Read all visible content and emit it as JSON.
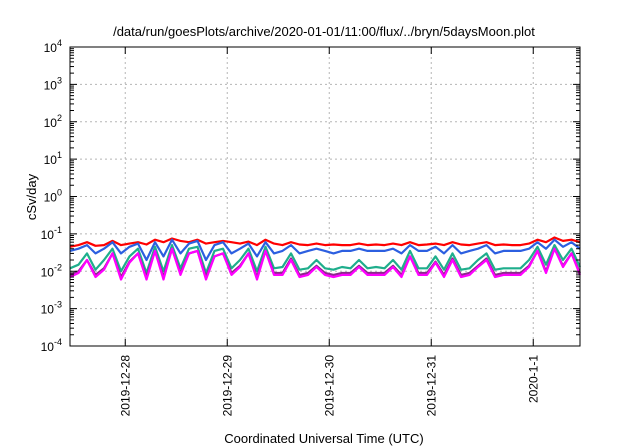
{
  "chart_data": {
    "type": "line",
    "title": "/data/run/goesPlots/archive/2020-01-01/11:00/flux/../bryn/5daysMoon.plot",
    "xlabel": "Coordinated Universal Time (UTC)",
    "ylabel": "cSv/day",
    "yscale": "log",
    "ylim": [
      0.0001,
      10000
    ],
    "xlim": [
      "2019-12-27 11:00",
      "2020-01-01 11:00"
    ],
    "grid": true,
    "y_ticks": [
      {
        "base": "10",
        "exp": "-4"
      },
      {
        "base": "10",
        "exp": "-3"
      },
      {
        "base": "10",
        "exp": "-2"
      },
      {
        "base": "10",
        "exp": "-1"
      },
      {
        "base": "10",
        "exp": "0"
      },
      {
        "base": "10",
        "exp": "1"
      },
      {
        "base": "10",
        "exp": "2"
      },
      {
        "base": "10",
        "exp": "3"
      },
      {
        "base": "10",
        "exp": "4"
      }
    ],
    "x_ticks": [
      "2019-12-28",
      "2019-12-29",
      "2019-12-30",
      "2019-12-31",
      "2020-1-1"
    ],
    "x_tick_times": [
      "2019-12-28 00:00",
      "2019-12-29 00:00",
      "2019-12-30 00:00",
      "2019-12-31 00:00",
      "2020-01-01 00:00"
    ],
    "x": [
      "2019-12-27 11:00",
      "2019-12-27 13:00",
      "2019-12-27 15:00",
      "2019-12-27 17:00",
      "2019-12-27 19:00",
      "2019-12-27 21:00",
      "2019-12-27 23:00",
      "2019-12-28 01:00",
      "2019-12-28 03:00",
      "2019-12-28 05:00",
      "2019-12-28 07:00",
      "2019-12-28 09:00",
      "2019-12-28 11:00",
      "2019-12-28 13:00",
      "2019-12-28 15:00",
      "2019-12-28 17:00",
      "2019-12-28 19:00",
      "2019-12-28 21:00",
      "2019-12-28 23:00",
      "2019-12-29 01:00",
      "2019-12-29 03:00",
      "2019-12-29 05:00",
      "2019-12-29 07:00",
      "2019-12-29 09:00",
      "2019-12-29 11:00",
      "2019-12-29 13:00",
      "2019-12-29 15:00",
      "2019-12-29 17:00",
      "2019-12-29 19:00",
      "2019-12-29 21:00",
      "2019-12-29 23:00",
      "2019-12-30 01:00",
      "2019-12-30 03:00",
      "2019-12-30 05:00",
      "2019-12-30 07:00",
      "2019-12-30 09:00",
      "2019-12-30 11:00",
      "2019-12-30 13:00",
      "2019-12-30 15:00",
      "2019-12-30 17:00",
      "2019-12-30 19:00",
      "2019-12-30 21:00",
      "2019-12-30 23:00",
      "2019-12-31 01:00",
      "2019-12-31 03:00",
      "2019-12-31 05:00",
      "2019-12-31 07:00",
      "2019-12-31 09:00",
      "2019-12-31 11:00",
      "2019-12-31 13:00",
      "2019-12-31 15:00",
      "2019-12-31 17:00",
      "2019-12-31 19:00",
      "2019-12-31 21:00",
      "2019-12-31 23:00",
      "2020-01-01 01:00",
      "2020-01-01 03:00",
      "2020-01-01 05:00",
      "2020-01-01 07:00",
      "2020-01-01 09:00",
      "2020-01-01 11:00"
    ],
    "series": [
      {
        "color": "#ff0000",
        "values": [
          0.045,
          0.05,
          0.06,
          0.048,
          0.05,
          0.065,
          0.05,
          0.055,
          0.06,
          0.052,
          0.07,
          0.06,
          0.075,
          0.065,
          0.06,
          0.07,
          0.055,
          0.06,
          0.065,
          0.06,
          0.055,
          0.062,
          0.05,
          0.07,
          0.055,
          0.05,
          0.06,
          0.052,
          0.05,
          0.055,
          0.05,
          0.052,
          0.05,
          0.05,
          0.055,
          0.05,
          0.052,
          0.05,
          0.055,
          0.05,
          0.06,
          0.05,
          0.052,
          0.055,
          0.05,
          0.06,
          0.052,
          0.05,
          0.055,
          0.06,
          0.05,
          0.052,
          0.05,
          0.05,
          0.055,
          0.07,
          0.06,
          0.08,
          0.065,
          0.07,
          0.06
        ]
      },
      {
        "color": "#2c5fe0",
        "values": [
          0.035,
          0.04,
          0.05,
          0.03,
          0.04,
          0.06,
          0.03,
          0.045,
          0.055,
          0.02,
          0.06,
          0.025,
          0.07,
          0.03,
          0.055,
          0.065,
          0.02,
          0.05,
          0.06,
          0.03,
          0.04,
          0.055,
          0.025,
          0.06,
          0.03,
          0.035,
          0.05,
          0.03,
          0.035,
          0.04,
          0.035,
          0.03,
          0.035,
          0.035,
          0.04,
          0.035,
          0.035,
          0.035,
          0.04,
          0.03,
          0.05,
          0.035,
          0.035,
          0.045,
          0.03,
          0.05,
          0.03,
          0.035,
          0.04,
          0.05,
          0.03,
          0.035,
          0.035,
          0.035,
          0.04,
          0.06,
          0.04,
          0.07,
          0.045,
          0.06,
          0.04
        ]
      },
      {
        "color": "#1fae8c",
        "values": [
          0.012,
          0.015,
          0.03,
          0.011,
          0.02,
          0.04,
          0.01,
          0.025,
          0.04,
          0.009,
          0.045,
          0.01,
          0.05,
          0.012,
          0.04,
          0.045,
          0.009,
          0.035,
          0.04,
          0.012,
          0.02,
          0.04,
          0.01,
          0.045,
          0.012,
          0.013,
          0.03,
          0.011,
          0.012,
          0.02,
          0.012,
          0.011,
          0.013,
          0.012,
          0.02,
          0.012,
          0.013,
          0.012,
          0.02,
          0.011,
          0.035,
          0.012,
          0.012,
          0.025,
          0.011,
          0.03,
          0.011,
          0.012,
          0.02,
          0.03,
          0.011,
          0.012,
          0.012,
          0.012,
          0.02,
          0.045,
          0.015,
          0.05,
          0.02,
          0.04,
          0.013
        ]
      },
      {
        "color": "#8b2a8b",
        "values": [
          0.008,
          0.01,
          0.02,
          0.008,
          0.012,
          0.03,
          0.007,
          0.018,
          0.03,
          0.007,
          0.035,
          0.007,
          0.04,
          0.009,
          0.03,
          0.035,
          0.007,
          0.025,
          0.03,
          0.009,
          0.014,
          0.03,
          0.007,
          0.035,
          0.009,
          0.009,
          0.022,
          0.008,
          0.009,
          0.014,
          0.009,
          0.008,
          0.009,
          0.009,
          0.014,
          0.009,
          0.009,
          0.009,
          0.014,
          0.008,
          0.025,
          0.009,
          0.009,
          0.018,
          0.008,
          0.022,
          0.008,
          0.009,
          0.014,
          0.022,
          0.008,
          0.009,
          0.009,
          0.009,
          0.014,
          0.035,
          0.01,
          0.04,
          0.014,
          0.03,
          0.009
        ]
      },
      {
        "color": "#ff00ff",
        "values": [
          0.007,
          0.009,
          0.02,
          0.007,
          0.011,
          0.03,
          0.006,
          0.017,
          0.03,
          0.006,
          0.035,
          0.006,
          0.04,
          0.008,
          0.03,
          0.035,
          0.006,
          0.025,
          0.03,
          0.008,
          0.013,
          0.03,
          0.006,
          0.035,
          0.008,
          0.008,
          0.02,
          0.007,
          0.008,
          0.013,
          0.008,
          0.007,
          0.008,
          0.008,
          0.013,
          0.008,
          0.008,
          0.008,
          0.013,
          0.007,
          0.025,
          0.008,
          0.008,
          0.017,
          0.007,
          0.02,
          0.007,
          0.008,
          0.013,
          0.02,
          0.007,
          0.008,
          0.008,
          0.008,
          0.013,
          0.035,
          0.009,
          0.04,
          0.013,
          0.03,
          0.008
        ]
      }
    ]
  }
}
